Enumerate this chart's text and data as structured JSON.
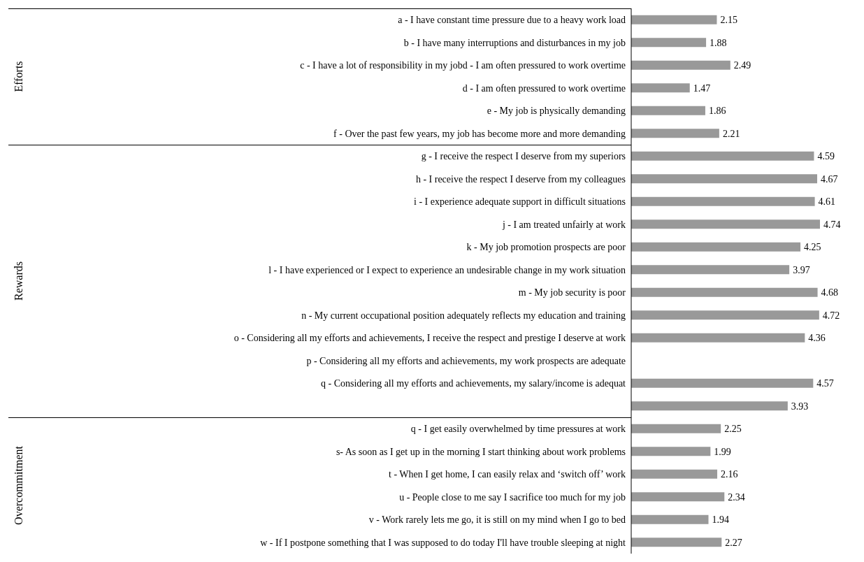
{
  "chart_data": [
    {
      "type": "bar",
      "orientation": "horizontal",
      "data_labels": true,
      "color": "#999999",
      "ylabel": "Efforts",
      "categories": [
        "a - I have constant time pressure due to a heavy work load",
        "b - I have many interruptions and disturbances in my job",
        "c - I have a lot of responsibility in my jobd - I am often pressured to work overtime",
        "d - I am often pressured to work overtime",
        "e - My job is physically demanding",
        "f - Over the past few years, my job has become more and more demanding"
      ],
      "values": [
        2.15,
        1.88,
        2.49,
        1.47,
        1.86,
        2.21
      ]
    },
    {
      "type": "bar",
      "orientation": "horizontal",
      "data_labels": true,
      "color": "#999999",
      "ylabel": "Rewards",
      "categories": [
        "g - I receive the respect I deserve from my superiors",
        "h - I receive the respect I deserve from my colleagues",
        "i - I experience adequate support in difficult situations",
        "j - I am treated unfairly at work",
        "k - My job promotion prospects are poor",
        "l - I have experienced or I expect to experience an undesirable change in my work situation",
        "m - My job security is poor",
        "n - My current occupational position adequately reflects my education and training",
        "o - Considering all my efforts and achievements, I receive the respect and prestige I deserve at work",
        "p - Considering all my efforts and achievements, my work prospects are adequate",
        "q - Considering all my efforts and achievements, my salary/income is adequat",
        null
      ],
      "values": [
        4.59,
        4.67,
        4.61,
        4.74,
        4.25,
        3.97,
        4.68,
        4.72,
        4.36,
        null,
        4.57,
        3.93
      ]
    },
    {
      "type": "bar",
      "orientation": "horizontal",
      "data_labels": true,
      "color": "#999999",
      "ylabel": "Overcommitment",
      "categories": [
        "q - I get easily overwhelmed by time pressures at work",
        "s- As soon as I get up in the morning I start thinking about work problems",
        "t - When I get home, I can easily relax and ‘switch off’ work",
        "u - People close to me say I sacrifice too much for my job",
        "v - Work rarely lets me go, it is still on my mind when I go to bed",
        "w - If I postpone something that I was supposed to do today I'll have trouble sleeping at night"
      ],
      "values": [
        2.25,
        1.99,
        2.16,
        2.34,
        1.94,
        2.27
      ]
    }
  ]
}
